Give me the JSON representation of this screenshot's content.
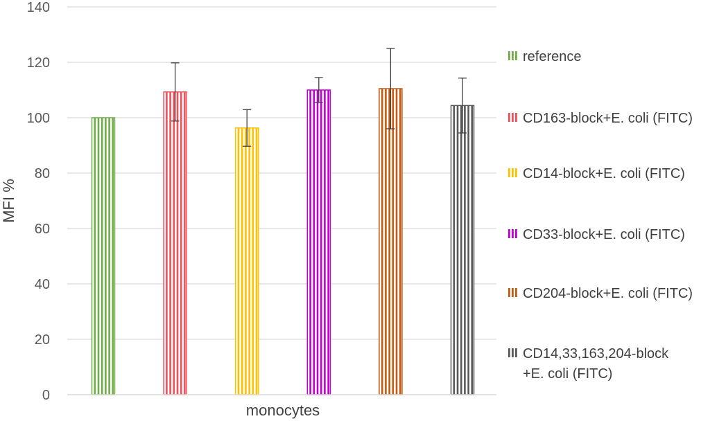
{
  "chart_data": {
    "type": "bar",
    "title": "",
    "xlabel": "",
    "ylabel": "MFI %",
    "ylim": [
      0,
      140
    ],
    "yticks": [
      0,
      20,
      40,
      60,
      80,
      100,
      120,
      140
    ],
    "grid": true,
    "legend_position": "right",
    "categories": [
      "monocytes"
    ],
    "series": [
      {
        "name": "reference",
        "color": "#70AD47",
        "values": [
          100
        ],
        "error": [
          0
        ]
      },
      {
        "name": "CD163-block+E. coli (FITC)",
        "color": "#F0505A",
        "values": [
          109.3
        ],
        "error": [
          10.5
        ]
      },
      {
        "name": "CD14-block+E. coli (FITC)",
        "color": "#FFC000",
        "values": [
          96.3
        ],
        "error": [
          6.6
        ]
      },
      {
        "name": "CD33-block+E. coli (FITC)",
        "color": "#C000D0",
        "values": [
          110
        ],
        "error": [
          4.5
        ]
      },
      {
        "name": "CD204-block+E. coli (FITC)",
        "color": "#C55A11",
        "values": [
          110.5
        ],
        "error": [
          14.5
        ]
      },
      {
        "name": "CD14,33,163,204-block +E. coli (FITC)",
        "color": "#595959",
        "values": [
          104.4
        ],
        "error": [
          9.9
        ]
      }
    ],
    "legend_lines": [
      [
        "reference"
      ],
      [
        "CD163-block+E. coli (FITC)"
      ],
      [
        "CD14-block+E. coli (FITC)"
      ],
      [
        "CD33-block+E. coli (FITC)"
      ],
      [
        "CD204-block+E. coli (FITC)"
      ],
      [
        "CD14,33,163,204-block",
        "+E. coli (FITC)"
      ]
    ]
  }
}
